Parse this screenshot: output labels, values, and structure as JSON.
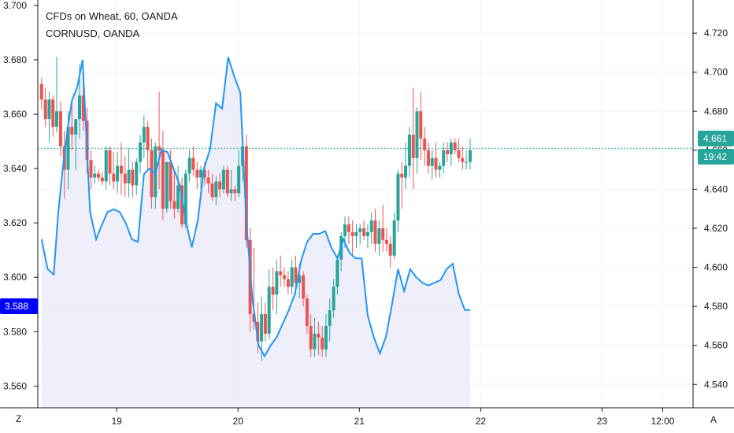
{
  "colors": {
    "up": "#26a69a",
    "down": "#ef5350",
    "overlay_line": "#2196f3",
    "overlay_fill": "#ececfa",
    "last_price_line": "#26a69a",
    "left_badge": "#0000ff",
    "grid": "#f0f3fa",
    "axis": "#131722"
  },
  "header": {
    "title": "CFDs on Wheat, 60, OANDA",
    "subtitle": "CORNUSD, OANDA"
  },
  "scale_buttons": {
    "left": "Z",
    "right": "A"
  },
  "badges": {
    "left_value": "3.588",
    "right_price": "4.661",
    "right_countdown": "19:42"
  },
  "chart_data": {
    "type": "candlestick",
    "title": "CFDs on Wheat, 60, OANDA",
    "right_axis": {
      "label": "CFDs on Wheat, 60, OANDA",
      "ticks": [
        "4.720",
        "4.700",
        "4.680",
        "4.660",
        "4.640",
        "4.620",
        "4.600",
        "4.580",
        "4.560",
        "4.540"
      ],
      "range": [
        4.528,
        4.737
      ]
    },
    "left_axis": {
      "label": "CORNUSD, OANDA",
      "ticks": [
        "3.700",
        "3.680",
        "3.660",
        "3.640",
        "3.620",
        "3.600",
        "3.580",
        "3.560"
      ],
      "range": [
        3.552,
        3.702
      ]
    },
    "x_ticks": [
      {
        "label": "19",
        "t": 19
      },
      {
        "label": "20",
        "t": 20
      },
      {
        "label": "21",
        "t": 21
      },
      {
        "label": "22",
        "t": 22
      },
      {
        "label": "23",
        "t": 23
      },
      {
        "label": "12:00",
        "t": 23.5
      }
    ],
    "x_range": [
      18.35,
      23.75
    ],
    "grid": true,
    "last_price": 4.661,
    "candles": [
      [
        18.381,
        4.694,
        4.697,
        4.681,
        4.686
      ],
      [
        18.413,
        4.686,
        4.692,
        4.672,
        4.676
      ],
      [
        18.444,
        4.676,
        4.69,
        4.664,
        4.686
      ],
      [
        18.475,
        4.686,
        4.688,
        4.667,
        4.672
      ],
      [
        18.506,
        4.672,
        4.708,
        4.669,
        4.68
      ],
      [
        18.538,
        4.68,
        4.685,
        4.657,
        4.662
      ],
      [
        18.569,
        4.662,
        4.67,
        4.635,
        4.65
      ],
      [
        18.6,
        4.65,
        4.68,
        4.64,
        4.672
      ],
      [
        18.631,
        4.672,
        4.685,
        4.66,
        4.668
      ],
      [
        18.663,
        4.668,
        4.676,
        4.65,
        4.676
      ],
      [
        18.694,
        4.676,
        4.704,
        4.666,
        4.688
      ],
      [
        18.725,
        4.688,
        4.695,
        4.67,
        4.675
      ],
      [
        18.756,
        4.675,
        4.682,
        4.648,
        4.655
      ],
      [
        18.788,
        4.655,
        4.66,
        4.64,
        4.646
      ],
      [
        18.819,
        4.646,
        4.652,
        4.643,
        4.648
      ],
      [
        18.85,
        4.648,
        4.65,
        4.644,
        4.646
      ],
      [
        18.881,
        4.646,
        4.649,
        4.642,
        4.644
      ],
      [
        18.913,
        4.644,
        4.662,
        4.64,
        4.66
      ],
      [
        18.944,
        4.66,
        4.662,
        4.642,
        4.648
      ],
      [
        18.975,
        4.648,
        4.659,
        4.64,
        4.644
      ],
      [
        19.006,
        4.644,
        4.659,
        4.638,
        4.652
      ],
      [
        19.038,
        4.652,
        4.664,
        4.637,
        4.648
      ],
      [
        19.069,
        4.648,
        4.657,
        4.636,
        4.643
      ],
      [
        19.1,
        4.643,
        4.661,
        4.636,
        4.65
      ],
      [
        19.131,
        4.65,
        4.654,
        4.636,
        4.642
      ],
      [
        19.163,
        4.642,
        4.656,
        4.637,
        4.654
      ],
      [
        19.194,
        4.654,
        4.668,
        4.648,
        4.664
      ],
      [
        19.225,
        4.664,
        4.678,
        4.656,
        4.672
      ],
      [
        19.256,
        4.672,
        4.675,
        4.65,
        4.66
      ],
      [
        19.288,
        4.66,
        4.666,
        4.63,
        4.636
      ],
      [
        19.319,
        4.636,
        4.664,
        4.63,
        4.662
      ],
      [
        19.35,
        4.662,
        4.69,
        4.64,
        4.66
      ],
      [
        19.381,
        4.66,
        4.67,
        4.624,
        4.63
      ],
      [
        19.413,
        4.63,
        4.654,
        4.628,
        4.654
      ],
      [
        19.444,
        4.654,
        4.66,
        4.63,
        4.634
      ],
      [
        19.475,
        4.634,
        4.65,
        4.625,
        4.63
      ],
      [
        19.506,
        4.63,
        4.652,
        4.628,
        4.642
      ],
      [
        19.538,
        4.642,
        4.646,
        4.62,
        4.622
      ],
      [
        19.569,
        4.622,
        4.65,
        4.62,
        4.648
      ],
      [
        19.6,
        4.648,
        4.66,
        4.644,
        4.656
      ],
      [
        19.631,
        4.656,
        4.662,
        4.647,
        4.65
      ],
      [
        19.663,
        4.65,
        4.654,
        4.64,
        4.646
      ],
      [
        19.694,
        4.646,
        4.652,
        4.64,
        4.65
      ],
      [
        19.725,
        4.65,
        4.654,
        4.642,
        4.646
      ],
      [
        19.756,
        4.646,
        4.65,
        4.638,
        4.643
      ],
      [
        19.788,
        4.643,
        4.648,
        4.634,
        4.636
      ],
      [
        19.819,
        4.636,
        4.647,
        4.632,
        4.644
      ],
      [
        19.85,
        4.644,
        4.648,
        4.636,
        4.64
      ],
      [
        19.881,
        4.64,
        4.652,
        4.638,
        4.65
      ],
      [
        19.913,
        4.65,
        4.652,
        4.636,
        4.638
      ],
      [
        19.944,
        4.638,
        4.65,
        4.634,
        4.64
      ],
      [
        19.975,
        4.64,
        4.642,
        4.634,
        4.638
      ],
      [
        20.006,
        4.638,
        4.66,
        4.636,
        4.652
      ],
      [
        20.038,
        4.652,
        4.67,
        4.644,
        4.662
      ],
      [
        20.069,
        4.662,
        4.668,
        4.61,
        4.614
      ],
      [
        20.1,
        4.614,
        4.62,
        4.567,
        4.576
      ],
      [
        20.131,
        4.576,
        4.61,
        4.568,
        4.572
      ],
      [
        20.163,
        4.572,
        4.582,
        4.556,
        4.562
      ],
      [
        20.194,
        4.562,
        4.585,
        4.552,
        4.576
      ],
      [
        20.225,
        4.576,
        4.582,
        4.562,
        4.566
      ],
      [
        20.256,
        4.566,
        4.599,
        4.563,
        4.59
      ],
      [
        20.288,
        4.59,
        4.6,
        4.578,
        4.586
      ],
      [
        20.319,
        4.586,
        4.604,
        4.576,
        4.598
      ],
      [
        20.35,
        4.598,
        4.606,
        4.59,
        4.596
      ],
      [
        20.381,
        4.596,
        4.6,
        4.59,
        4.594
      ],
      [
        20.413,
        4.594,
        4.598,
        4.586,
        4.59
      ],
      [
        20.444,
        4.59,
        4.604,
        4.586,
        4.6
      ],
      [
        20.475,
        4.6,
        4.606,
        4.586,
        4.592
      ],
      [
        20.506,
        4.592,
        4.602,
        4.584,
        4.596
      ],
      [
        20.538,
        4.596,
        4.598,
        4.58,
        4.584
      ],
      [
        20.569,
        4.584,
        4.586,
        4.566,
        4.57
      ],
      [
        20.6,
        4.57,
        4.576,
        4.554,
        4.558
      ],
      [
        20.631,
        4.558,
        4.574,
        4.554,
        4.566
      ],
      [
        20.663,
        4.566,
        4.572,
        4.555,
        4.564
      ],
      [
        20.694,
        4.564,
        4.57,
        4.554,
        4.558
      ],
      [
        20.725,
        4.558,
        4.576,
        4.554,
        4.57
      ],
      [
        20.756,
        4.57,
        4.584,
        4.562,
        4.578
      ],
      [
        20.788,
        4.578,
        4.594,
        4.574,
        4.59
      ],
      [
        20.819,
        4.59,
        4.606,
        4.586,
        4.604
      ],
      [
        20.85,
        4.604,
        4.618,
        4.598,
        4.616
      ],
      [
        20.881,
        4.616,
        4.626,
        4.61,
        4.622
      ],
      [
        20.913,
        4.622,
        4.626,
        4.612,
        4.618
      ],
      [
        20.944,
        4.618,
        4.624,
        4.606,
        4.616
      ],
      [
        20.975,
        4.616,
        4.622,
        4.61,
        4.618
      ],
      [
        21.006,
        4.618,
        4.622,
        4.612,
        4.62
      ],
      [
        21.038,
        4.62,
        4.624,
        4.614,
        4.616
      ],
      [
        21.069,
        4.616,
        4.622,
        4.61,
        4.618
      ],
      [
        21.1,
        4.618,
        4.628,
        4.612,
        4.624
      ],
      [
        21.131,
        4.624,
        4.63,
        4.608,
        4.612
      ],
      [
        21.163,
        4.612,
        4.624,
        4.606,
        4.62
      ],
      [
        21.194,
        4.62,
        4.632,
        4.608,
        4.614
      ],
      [
        21.225,
        4.614,
        4.62,
        4.608,
        4.612
      ],
      [
        21.256,
        4.612,
        4.616,
        4.6,
        4.606
      ],
      [
        21.288,
        4.606,
        4.628,
        4.604,
        4.624
      ],
      [
        21.319,
        4.624,
        4.65,
        4.618,
        4.648
      ],
      [
        21.35,
        4.648,
        4.654,
        4.63,
        4.646
      ],
      [
        21.381,
        4.646,
        4.664,
        4.64,
        4.652
      ],
      [
        21.413,
        4.652,
        4.672,
        4.646,
        4.668
      ],
      [
        21.444,
        4.668,
        4.692,
        4.64,
        4.656
      ],
      [
        21.475,
        4.656,
        4.682,
        4.648,
        4.68
      ],
      [
        21.506,
        4.68,
        4.69,
        4.655,
        4.666
      ],
      [
        21.538,
        4.666,
        4.672,
        4.652,
        4.66
      ],
      [
        21.569,
        4.66,
        4.664,
        4.648,
        4.652
      ],
      [
        21.6,
        4.652,
        4.66,
        4.645,
        4.656
      ],
      [
        21.631,
        4.656,
        4.664,
        4.646,
        4.65
      ],
      [
        21.663,
        4.65,
        4.654,
        4.646,
        4.652
      ],
      [
        21.694,
        4.652,
        4.664,
        4.648,
        4.66
      ],
      [
        21.725,
        4.66,
        4.664,
        4.654,
        4.658
      ],
      [
        21.756,
        4.658,
        4.666,
        4.652,
        4.664
      ],
      [
        21.788,
        4.664,
        4.666,
        4.658,
        4.66
      ],
      [
        21.819,
        4.66,
        4.666,
        4.654,
        4.656
      ],
      [
        21.85,
        4.656,
        4.662,
        4.65,
        4.654
      ],
      [
        21.881,
        4.654,
        4.66,
        4.65,
        4.654
      ],
      [
        21.913,
        4.654,
        4.666,
        4.65,
        4.66
      ]
    ],
    "overlay_series": {
      "name": "CORNUSD, OANDA",
      "x": [
        18.381,
        18.431,
        18.481,
        18.519,
        18.556,
        18.594,
        18.631,
        18.675,
        18.719,
        18.781,
        18.831,
        18.875,
        18.925,
        18.975,
        19.025,
        19.075,
        19.125,
        19.175,
        19.225,
        19.269,
        19.319,
        19.369,
        19.419,
        19.469,
        19.519,
        19.569,
        19.619,
        19.669,
        19.719,
        19.769,
        19.819,
        19.869,
        19.919,
        19.969,
        20.019,
        20.069,
        20.119,
        20.169,
        20.219,
        20.269,
        20.319,
        20.369,
        20.419,
        20.469,
        20.519,
        20.569,
        20.619,
        20.669,
        20.719,
        20.769,
        20.819,
        20.869,
        20.919,
        20.969,
        21.019,
        21.069,
        21.119,
        21.169,
        21.219,
        21.269,
        21.319,
        21.369,
        21.419,
        21.469,
        21.519,
        21.569,
        21.619,
        21.669,
        21.719,
        21.769,
        21.819,
        21.869,
        21.913
      ],
      "y": [
        3.614,
        3.603,
        3.601,
        3.624,
        3.64,
        3.654,
        3.665,
        3.67,
        3.68,
        3.624,
        3.614,
        3.619,
        3.624,
        3.625,
        3.624,
        3.62,
        3.614,
        3.613,
        3.638,
        3.64,
        3.638,
        3.647,
        3.646,
        3.64,
        3.634,
        3.621,
        3.611,
        3.621,
        3.64,
        3.647,
        3.664,
        3.662,
        3.681,
        3.674,
        3.668,
        3.62,
        3.592,
        3.575,
        3.571,
        3.575,
        3.578,
        3.583,
        3.588,
        3.594,
        3.606,
        3.613,
        3.616,
        3.616,
        3.617,
        3.611,
        3.607,
        3.614,
        3.609,
        3.607,
        3.607,
        3.586,
        3.578,
        3.572,
        3.578,
        3.59,
        3.603,
        3.595,
        3.603,
        3.6,
        3.598,
        3.597,
        3.598,
        3.599,
        3.603,
        3.605,
        3.594,
        3.588,
        3.588
      ],
      "range": [
        3.552,
        3.702
      ]
    }
  }
}
